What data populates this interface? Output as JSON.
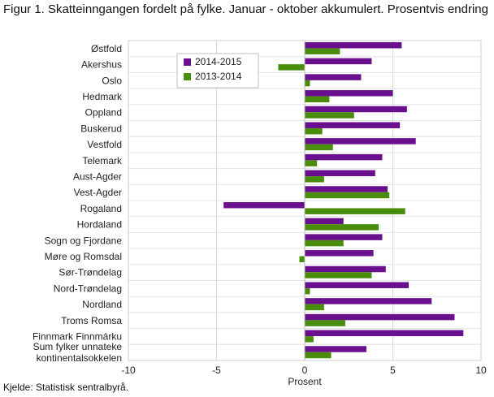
{
  "title": "Figur 1. Skatteinngangen fordelt på fylke. Januar - oktober akkumulert. Prosentvis endring",
  "source": "Kjelde: Statistisk sentralbyrå.",
  "chart_data": {
    "type": "bar",
    "orientation": "horizontal",
    "title": "Figur 1. Skatteinngangen fordelt på fylke. Januar - oktober akkumulert. Prosentvis endring",
    "xlabel": "Prosent",
    "ylabel": "",
    "xlim": [
      -10,
      10
    ],
    "xticks": [
      -10,
      -5,
      0,
      5,
      10
    ],
    "xtick_labels": [
      "-10",
      "-5",
      "0",
      "5",
      "10"
    ],
    "grid": true,
    "legend_position": "top-left inside plot",
    "categories": [
      "Østfold",
      "Akershus",
      "Oslo",
      "Hedmark",
      "Oppland",
      "Buskerud",
      "Vestfold",
      "Telemark",
      "Aust-Agder",
      "Vest-Agder",
      "Rogaland",
      "Hordaland",
      "Sogn og Fjordane",
      "Møre og Romsdal",
      "Sør-Trøndelag",
      "Nord-Trøndelag",
      "Nordland",
      "Troms Romsa",
      "Finnmark Finnmárku",
      "Sum fylker unnateke kontinentalsokkelen"
    ],
    "category_lines": [
      [
        "Østfold"
      ],
      [
        "Akershus"
      ],
      [
        "Oslo"
      ],
      [
        "Hedmark"
      ],
      [
        "Oppland"
      ],
      [
        "Buskerud"
      ],
      [
        "Vestfold"
      ],
      [
        "Telemark"
      ],
      [
        "Aust-Agder"
      ],
      [
        "Vest-Agder"
      ],
      [
        "Rogaland"
      ],
      [
        "Hordaland"
      ],
      [
        "Sogn og Fjordane"
      ],
      [
        "Møre og Romsdal"
      ],
      [
        "Sør-Trøndelag"
      ],
      [
        "Nord-Trøndelag"
      ],
      [
        "Nordland"
      ],
      [
        "Troms Romsa"
      ],
      [
        "Finnmark Finnmárku"
      ],
      [
        "Sum fylker unnateke",
        "kontinentalsokkelen"
      ]
    ],
    "series": [
      {
        "name": "2014-2015",
        "color": "#6a0f8e",
        "values": [
          5.5,
          3.8,
          3.2,
          5.0,
          5.8,
          5.4,
          6.3,
          4.4,
          4.0,
          4.7,
          -4.6,
          2.2,
          4.4,
          3.9,
          4.6,
          5.9,
          7.2,
          8.5,
          9.0,
          3.5
        ]
      },
      {
        "name": "2013-2014",
        "color": "#4a8c0c",
        "values": [
          2.0,
          -1.5,
          0.3,
          1.4,
          2.8,
          1.0,
          1.6,
          0.7,
          1.1,
          4.8,
          5.7,
          4.2,
          2.2,
          -0.3,
          3.8,
          0.3,
          1.1,
          2.3,
          0.5,
          1.5
        ]
      }
    ]
  }
}
